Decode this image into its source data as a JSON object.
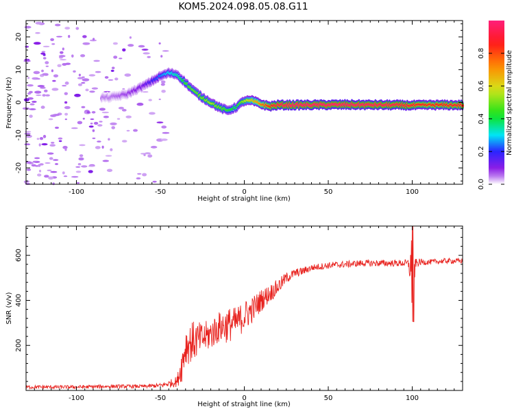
{
  "figure": {
    "title": "KOM5.2024.098.05.08.G11"
  },
  "chart_data": [
    {
      "type": "heatmap",
      "xlabel": "Height of straight line (km)",
      "ylabel": "Frequency (Hz)",
      "xlim": [
        -130,
        130
      ],
      "ylim": [
        -25,
        25
      ],
      "xticks": [
        -100,
        -50,
        0,
        50,
        100
      ],
      "yticks": [
        -20,
        -10,
        0,
        10,
        20
      ],
      "xtick_labels": [
        "-100",
        "-50",
        "0",
        "50",
        "100"
      ],
      "ytick_labels": [
        "-20",
        "-10",
        "0",
        "10",
        "20"
      ],
      "grid": false,
      "colorbar": {
        "label": "Normalized spectral amplitude",
        "range": [
          0,
          1
        ],
        "ticks": [
          0.0,
          0.2,
          0.4,
          0.6,
          0.8
        ],
        "tick_labels": [
          "0.0",
          "0.2",
          "0.4",
          "0.6",
          "0.8"
        ],
        "colormap": "rainbow (purple → blue → cyan → green → yellow → orange → red → magenta)",
        "colors": [
          "#ffffff",
          "#d6b0f5",
          "#8a1ee6",
          "#2b24ff",
          "#00e5f5",
          "#10e21a",
          "#d5e51a",
          "#ff8a00",
          "#ff1a1a",
          "#ff1f7a"
        ]
      },
      "ridge": {
        "x": [
          -80,
          -70,
          -60,
          -55,
          -50,
          -45,
          -40,
          -35,
          -30,
          -25,
          -20,
          -15,
          -10,
          -5,
          0,
          5,
          10,
          15,
          20,
          30,
          60,
          90,
          100,
          110,
          130
        ],
        "freq": [
          1.5,
          2.5,
          5,
          6.5,
          8,
          9,
          8.5,
          6,
          3.5,
          1.5,
          0,
          -1.5,
          -2.5,
          -1.5,
          0.5,
          0.5,
          -0.5,
          -1.2,
          -0.8,
          -0.8,
          -0.7,
          -0.8,
          -0.9,
          -0.8,
          -0.8
        ],
        "amplitude": [
          0.05,
          0.08,
          0.12,
          0.18,
          0.25,
          0.3,
          0.35,
          0.45,
          0.5,
          0.5,
          0.55,
          0.5,
          0.45,
          0.4,
          0.55,
          0.65,
          0.75,
          0.85,
          0.95,
          1.0,
          1.0,
          0.95,
          0.9,
          0.85,
          0.9
        ]
      }
    },
    {
      "type": "line",
      "xlabel": "Height of straight line (km)",
      "ylabel": "SNR (v/v)",
      "xlim": [
        -130,
        130
      ],
      "ylim": [
        0,
        730
      ],
      "xticks": [
        -100,
        -50,
        0,
        50,
        100
      ],
      "yticks": [
        200,
        400,
        600
      ],
      "xtick_labels": [
        "-100",
        "-50",
        "0",
        "50",
        "100"
      ],
      "ytick_labels": [
        "200",
        "400",
        "600"
      ],
      "grid": false,
      "series": [
        {
          "color": "#e8231f",
          "envelope": {
            "x": [
              -130,
              -100,
              -80,
              -60,
              -50,
              -45,
              -40,
              -37,
              -35,
              -30,
              -25,
              -20,
              -15,
              -10,
              -5,
              0,
              5,
              10,
              15,
              20,
              25,
              30,
              35,
              40,
              50,
              60,
              70,
              80,
              90,
              95,
              98,
              100,
              102,
              105,
              110,
              120,
              130
            ],
            "mean": [
              15,
              15,
              18,
              18,
              22,
              30,
              40,
              120,
              200,
              220,
              230,
              250,
              280,
              290,
              300,
              330,
              360,
              400,
              430,
              460,
              500,
              520,
              530,
              545,
              555,
              560,
              565,
              565,
              565,
              565,
              560,
              520,
              565,
              570,
              570,
              575,
              575
            ],
            "spread": [
              8,
              8,
              8,
              8,
              10,
              15,
              25,
              80,
              90,
              90,
              70,
              70,
              70,
              80,
              70,
              70,
              60,
              50,
              40,
              35,
              25,
              20,
              18,
              15,
              15,
              15,
              15,
              15,
              15,
              15,
              25,
              200,
              20,
              15,
              12,
              12,
              12
            ]
          }
        }
      ]
    }
  ]
}
